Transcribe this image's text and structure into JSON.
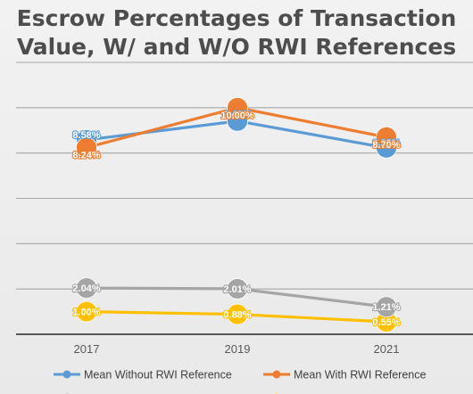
{
  "colors": {
    "mean_without": "#5b9bd5",
    "mean_with": "#ed7d31",
    "median_without": "#a5a5a5",
    "median_with": "#ffc000",
    "grid": "#a6a6a6",
    "axis": "#262626"
  },
  "chart_data": {
    "type": "line",
    "title_lines": [
      "Escrow Percentages of Transaction",
      "Value, W/ and W/O RWI References"
    ],
    "categories": [
      "2017",
      "2019",
      "2021"
    ],
    "series": [
      {
        "name": "Mean Without RWI Reference",
        "values": [
          8.58,
          9.41,
          8.23
        ],
        "labels": [
          "8.58%",
          "9.41%",
          "8.23%"
        ],
        "color": "#5b9bd5"
      },
      {
        "name": "Mean With RWI Reference",
        "values": [
          8.24,
          10.0,
          8.7
        ],
        "labels": [
          "8.24%",
          "10.00%",
          "8.70%"
        ],
        "color": "#ed7d31"
      },
      {
        "name": "",
        "values": [
          2.04,
          2.01,
          1.21
        ],
        "labels": [
          "2.04%",
          "2.01%",
          "1.21%"
        ],
        "color": "#a5a5a5"
      },
      {
        "name": "",
        "values": [
          1.0,
          0.88,
          0.55
        ],
        "labels": [
          "1.00%",
          "0.88%",
          "0.55%"
        ],
        "color": "#ffc000"
      }
    ],
    "ylim": [
      0,
      12
    ],
    "y_gridlines": [
      2,
      4,
      6,
      8,
      10,
      12
    ],
    "y_tick_labels_shown": false,
    "grid": true,
    "legend_position": "bottom"
  }
}
